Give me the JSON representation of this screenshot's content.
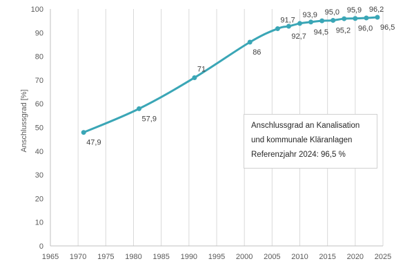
{
  "chart_data": {
    "type": "line",
    "xlabel": "",
    "ylabel": "Anschlussgrad [%]",
    "xlim": [
      1965,
      2025
    ],
    "ylim": [
      0,
      100
    ],
    "x_ticks": [
      "1965",
      "1970",
      "1975",
      "1980",
      "1985",
      "1990",
      "1995",
      "2000",
      "2005",
      "2010",
      "2015",
      "2020",
      "2025"
    ],
    "y_ticks": [
      "0",
      "10",
      "20",
      "30",
      "40",
      "50",
      "60",
      "70",
      "80",
      "90",
      "100"
    ],
    "grid": "vertical",
    "series": [
      {
        "name": "",
        "color": "#3aa6b6",
        "points": [
          {
            "x": 1971,
            "y": 47.9,
            "label": "47,9",
            "label_pos": "below"
          },
          {
            "x": 1981,
            "y": 57.9,
            "label": "57,9",
            "label_pos": "below"
          },
          {
            "x": 1991,
            "y": 71,
            "label": "71",
            "label_pos": "above"
          },
          {
            "x": 2001,
            "y": 86,
            "label": "86",
            "label_pos": "below"
          },
          {
            "x": 2006,
            "y": 91.7,
            "label": "91,7",
            "label_pos": "above"
          },
          {
            "x": 2008,
            "y": 92.7,
            "label": "92,7",
            "label_pos": "below"
          },
          {
            "x": 2010,
            "y": 93.9,
            "label": "93,9",
            "label_pos": "above"
          },
          {
            "x": 2012,
            "y": 94.5,
            "label": "94,5",
            "label_pos": "below"
          },
          {
            "x": 2014,
            "y": 95.0,
            "label": "95,0",
            "label_pos": "above"
          },
          {
            "x": 2016,
            "y": 95.2,
            "label": "95,2",
            "label_pos": "below"
          },
          {
            "x": 2018,
            "y": 95.9,
            "label": "95,9",
            "label_pos": "above"
          },
          {
            "x": 2020,
            "y": 96.0,
            "label": "96,0",
            "label_pos": "below"
          },
          {
            "x": 2022,
            "y": 96.2,
            "label": "96,2",
            "label_pos": "above"
          },
          {
            "x": 2024,
            "y": 96.5,
            "label": "96,5",
            "label_pos": "below"
          }
        ]
      }
    ],
    "annotation": {
      "lines": [
        "Anschlussgrad an Kanalisation",
        "und kommunale Kläranlagen",
        "Referenzjahr 2024: 96,5 %"
      ]
    }
  }
}
